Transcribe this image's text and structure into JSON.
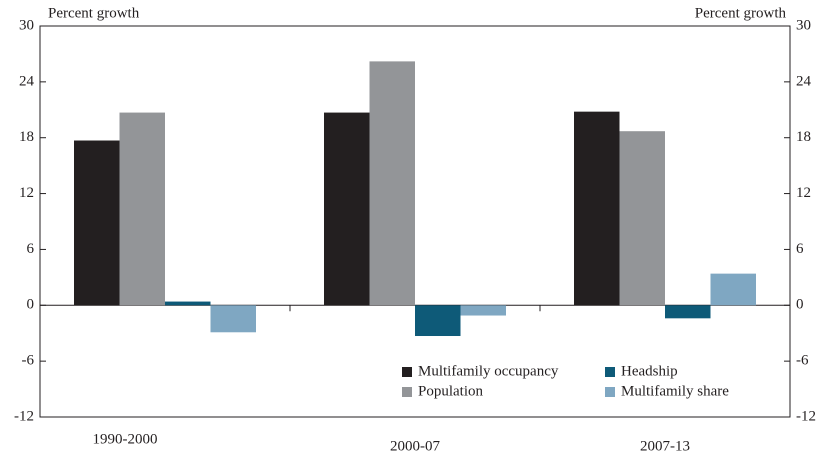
{
  "chart_data": {
    "type": "bar",
    "y_axis_label": "Percent growth",
    "y2_axis_label": "Percent growth",
    "categories": [
      "1990-2000",
      "2000-07",
      "2007-13"
    ],
    "series": [
      {
        "name": "Multifamily occupancy",
        "color": "#231f20",
        "values": [
          17.7,
          20.7,
          20.8
        ]
      },
      {
        "name": "Population",
        "color": "#939598",
        "values": [
          20.7,
          26.2,
          18.7
        ]
      },
      {
        "name": "Headship",
        "color": "#0e5a78",
        "values": [
          0.4,
          -3.3,
          -1.4
        ]
      },
      {
        "name": "Multifamily share",
        "color": "#7fa7c2",
        "values": [
          -2.9,
          -1.1,
          3.4
        ]
      }
    ],
    "ylim": [
      -12,
      30
    ],
    "yticks": [
      -12,
      -6,
      0,
      6,
      12,
      18,
      24,
      30
    ],
    "y2lim": [
      -12,
      30
    ],
    "y2ticks": [
      -12,
      -6,
      0,
      6,
      12,
      18,
      24,
      30
    ],
    "legend": "lower right"
  }
}
